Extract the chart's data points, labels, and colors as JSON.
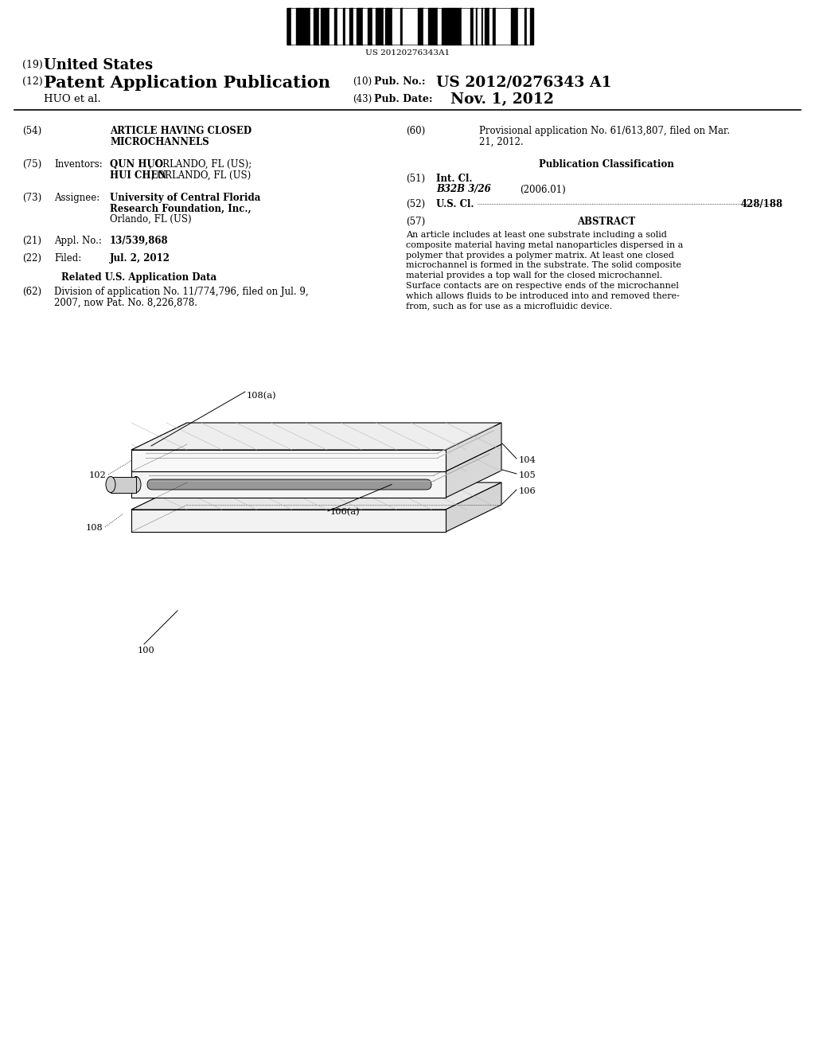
{
  "bg_color": "#ffffff",
  "barcode_text": "US 20120276343A1",
  "abstract_lines": [
    "An article includes at least one substrate including a solid",
    "composite material having metal nanoparticles dispersed in a",
    "polymer that provides a polymer matrix. At least one closed",
    "microchannel is formed in the substrate. The solid composite",
    "material provides a top wall for the closed microchannel.",
    "Surface contacts are on respective ends of the microchannel",
    "which allows fluids to be introduced into and removed there-",
    "from, such as for use as a microfluidic device."
  ],
  "label_100": "100",
  "label_102": "102",
  "label_104": "104",
  "label_105": "105",
  "label_106": "106",
  "label_106a": "106(a)",
  "label_108": "108",
  "label_108a": "108(a)"
}
